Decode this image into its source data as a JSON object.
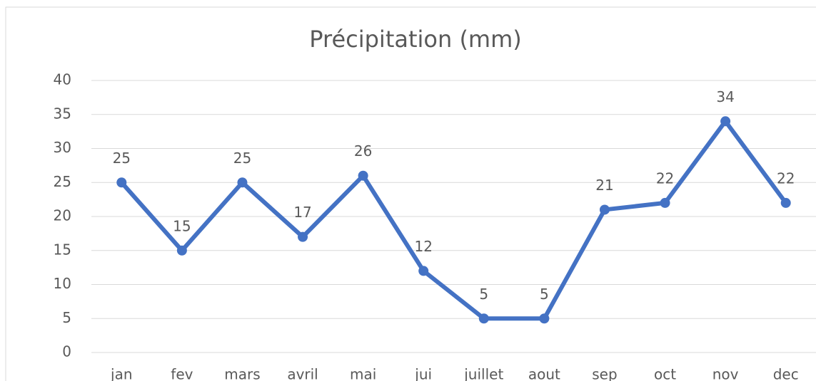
{
  "chart_data": {
    "type": "line",
    "title": "Précipitation (mm)",
    "categories": [
      "jan",
      "fev",
      "mars",
      "avril",
      "mai",
      "jui",
      "juillet",
      "aout",
      "sep",
      "oct",
      "nov",
      "dec"
    ],
    "values": [
      25,
      15,
      25,
      17,
      26,
      12,
      5,
      5,
      21,
      22,
      34,
      22
    ],
    "color": "#4472c4",
    "ylim": [
      0,
      40
    ],
    "yticks": [
      0,
      5,
      10,
      15,
      20,
      25,
      30,
      35,
      40
    ],
    "grid": true
  }
}
